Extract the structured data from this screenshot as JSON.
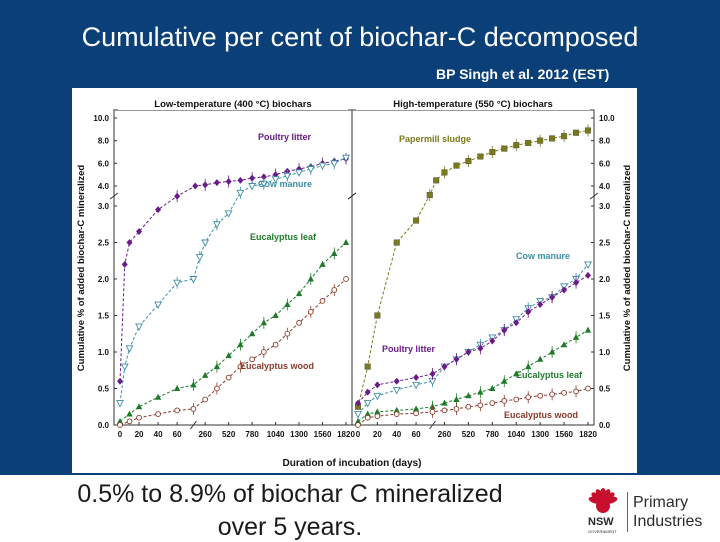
{
  "slide": {
    "title": "Cumulative per cent of biochar-C decomposed",
    "citation": "BP Singh et al. 2012 (EST)",
    "caption_line1": "0.5% to 8.9% of biochar C mineralized",
    "caption_line2": "over 5 years.",
    "logo": {
      "agency": "NSW",
      "gov": "GOVERNMENT",
      "line1": "Primary",
      "line2": "Industries"
    }
  },
  "colors": {
    "band": "#0b3f78",
    "purple": "#6a1b8a",
    "teal": "#3d8fa6",
    "green": "#1f7a2a",
    "brown": "#8b3a2a",
    "olive": "#7a7a1a",
    "logo_red": "#c8102e"
  },
  "chart_data": [
    {
      "type": "line",
      "title": "Low-temperature (400 °C) biochars",
      "xlabel": "Duration of incubation (days)",
      "ylabel": "Cumulative % of added biochar-C mineralized",
      "x_ticks": [
        "0",
        "20",
        "40",
        "60",
        "260",
        "520",
        "780",
        "1040",
        "1300",
        "1560",
        "1820"
      ],
      "y_ticks_lower": [
        "0.0",
        "0.5",
        "1.0",
        "1.5",
        "2.0",
        "2.5",
        "3.0"
      ],
      "y_ticks_upper": [
        "4.0",
        "6.0",
        "8.0",
        "10.0"
      ],
      "series": [
        {
          "name": "Poultry litter",
          "color": "#6a1b8a",
          "x": [
            0,
            5,
            10,
            20,
            40,
            60,
            150,
            260,
            390,
            520,
            650,
            780,
            910,
            1040,
            1170,
            1300,
            1430,
            1560,
            1690,
            1820
          ],
          "y": [
            0.6,
            2.2,
            2.5,
            2.65,
            2.95,
            3.1,
            4.0,
            4.1,
            4.3,
            4.4,
            4.5,
            4.7,
            4.8,
            5.0,
            5.3,
            5.5,
            5.7,
            6.0,
            6.2,
            6.4
          ]
        },
        {
          "name": "Cow manure",
          "color": "#3d8fa6",
          "x": [
            0,
            5,
            10,
            20,
            40,
            60,
            130,
            200,
            260,
            390,
            520,
            650,
            780,
            910,
            1040,
            1170,
            1300,
            1430,
            1560,
            1690,
            1820
          ],
          "y": [
            0.3,
            0.8,
            1.05,
            1.35,
            1.65,
            1.95,
            2.0,
            2.3,
            2.5,
            2.75,
            2.9,
            3.4,
            4.0,
            4.2,
            4.6,
            4.9,
            5.2,
            5.5,
            5.8,
            6.0,
            6.5
          ]
        },
        {
          "name": "Eucalyptus leaf",
          "color": "#1f7a2a",
          "x": [
            0,
            10,
            20,
            40,
            60,
            130,
            260,
            390,
            520,
            650,
            780,
            910,
            1040,
            1170,
            1300,
            1430,
            1560,
            1690,
            1820
          ],
          "y": [
            0.05,
            0.15,
            0.25,
            0.38,
            0.5,
            0.55,
            0.68,
            0.8,
            0.95,
            1.1,
            1.25,
            1.4,
            1.5,
            1.65,
            1.8,
            2.0,
            2.2,
            2.35,
            2.5
          ]
        },
        {
          "name": "Eucalyptus wood",
          "color": "#8b3a2a",
          "x": [
            0,
            10,
            20,
            40,
            60,
            130,
            260,
            390,
            520,
            650,
            780,
            910,
            1040,
            1170,
            1300,
            1430,
            1560,
            1690,
            1820
          ],
          "y": [
            0.0,
            0.05,
            0.1,
            0.15,
            0.2,
            0.22,
            0.35,
            0.5,
            0.65,
            0.8,
            0.9,
            1.0,
            1.1,
            1.25,
            1.4,
            1.55,
            1.7,
            1.85,
            2.0
          ]
        }
      ]
    },
    {
      "type": "line",
      "title": "High-temperature (550 °C) biochars",
      "xlabel": "Duration of incubation (days)",
      "ylabel": "Cumulative % of added biochar-C mineralized",
      "x_ticks": [
        "0",
        "20",
        "40",
        "60",
        "260",
        "520",
        "780",
        "1040",
        "1300",
        "1560",
        "1820"
      ],
      "y_ticks_lower": [
        "0.0",
        "0.5",
        "1.0",
        "1.5",
        "2.0",
        "2.5",
        "3.0"
      ],
      "y_ticks_upper": [
        "4.0",
        "6.0",
        "8.0",
        "10.0"
      ],
      "series": [
        {
          "name": "Papermill sludge",
          "color": "#7a7a1a",
          "x": [
            0,
            10,
            20,
            40,
            60,
            100,
            170,
            260,
            390,
            520,
            650,
            780,
            910,
            1040,
            1170,
            1300,
            1430,
            1560,
            1690,
            1820
          ],
          "y": [
            0.25,
            0.8,
            1.5,
            2.5,
            2.8,
            3.2,
            4.5,
            5.2,
            5.8,
            6.2,
            6.6,
            7.0,
            7.3,
            7.6,
            7.8,
            8.0,
            8.2,
            8.4,
            8.7,
            8.9
          ]
        },
        {
          "name": "Cow manure",
          "color": "#3d8fa6",
          "x": [
            0,
            10,
            20,
            40,
            60,
            130,
            260,
            390,
            520,
            650,
            780,
            910,
            1040,
            1170,
            1300,
            1430,
            1560,
            1690,
            1820
          ],
          "y": [
            0.15,
            0.3,
            0.4,
            0.48,
            0.55,
            0.6,
            0.8,
            0.9,
            1.0,
            1.1,
            1.2,
            1.3,
            1.45,
            1.6,
            1.7,
            1.75,
            1.9,
            2.0,
            2.2
          ]
        },
        {
          "name": "Poultry litter",
          "color": "#6a1b8a",
          "x": [
            0,
            10,
            20,
            40,
            60,
            130,
            260,
            390,
            520,
            650,
            780,
            910,
            1040,
            1170,
            1300,
            1430,
            1560,
            1690,
            1820
          ],
          "y": [
            0.3,
            0.45,
            0.55,
            0.6,
            0.65,
            0.7,
            0.8,
            0.9,
            1.0,
            1.05,
            1.15,
            1.3,
            1.4,
            1.55,
            1.65,
            1.75,
            1.85,
            1.95,
            2.05
          ]
        },
        {
          "name": "Eucalyptus leaf",
          "color": "#1f7a2a",
          "x": [
            0,
            10,
            20,
            40,
            60,
            130,
            260,
            390,
            520,
            650,
            780,
            910,
            1040,
            1170,
            1300,
            1430,
            1560,
            1690,
            1820
          ],
          "y": [
            0.05,
            0.15,
            0.18,
            0.2,
            0.22,
            0.25,
            0.3,
            0.35,
            0.4,
            0.45,
            0.5,
            0.6,
            0.7,
            0.8,
            0.9,
            1.0,
            1.1,
            1.2,
            1.3
          ]
        },
        {
          "name": "Eucalyptus wood",
          "color": "#8b3a2a",
          "x": [
            0,
            10,
            20,
            40,
            60,
            130,
            260,
            390,
            520,
            650,
            780,
            910,
            1040,
            1170,
            1300,
            1430,
            1560,
            1690,
            1820
          ],
          "y": [
            0.0,
            0.1,
            0.12,
            0.15,
            0.16,
            0.18,
            0.2,
            0.22,
            0.25,
            0.27,
            0.3,
            0.33,
            0.35,
            0.38,
            0.4,
            0.42,
            0.44,
            0.46,
            0.5
          ]
        }
      ]
    }
  ]
}
